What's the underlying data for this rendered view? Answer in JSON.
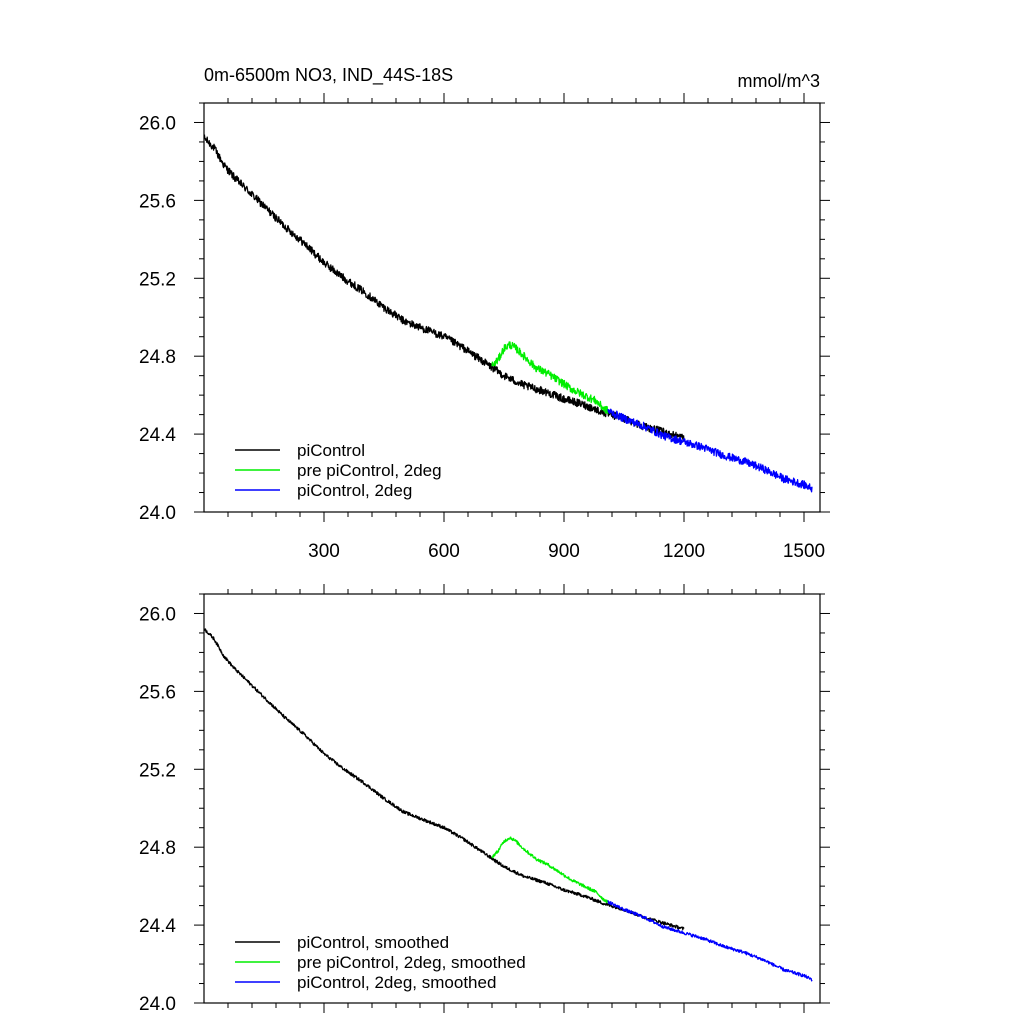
{
  "chart_data": [
    {
      "type": "line",
      "title": "0m-6500m NO3, IND_44S-18S",
      "units": "mmol/m^3",
      "xlim": [
        0,
        1540
      ],
      "ylim": [
        24.0,
        26.1
      ],
      "xticks": [
        300,
        600,
        900,
        1200,
        1500
      ],
      "xtick_labels": [
        "300",
        "600",
        "900",
        "1200",
        "1500"
      ],
      "yticks": [
        24.0,
        24.4,
        24.8,
        25.2,
        25.6,
        26.0
      ],
      "ytick_labels": [
        "24.0",
        "24.4",
        "24.8",
        "25.2",
        "25.6",
        "26.0"
      ],
      "legend_position": "bottom-left",
      "series": [
        {
          "name": "piControl",
          "color": "#000000",
          "noise": 0.02,
          "x": [
            1,
            25,
            50,
            75,
            100,
            125,
            150,
            175,
            200,
            250,
            300,
            350,
            400,
            450,
            500,
            550,
            600,
            650,
            700,
            750,
            800,
            850,
            900,
            950,
            1000,
            1050,
            1100,
            1150,
            1200
          ],
          "y": [
            25.92,
            25.87,
            25.78,
            25.72,
            25.67,
            25.62,
            25.57,
            25.52,
            25.47,
            25.38,
            25.28,
            25.2,
            25.13,
            25.05,
            24.98,
            24.94,
            24.9,
            24.84,
            24.77,
            24.7,
            24.65,
            24.62,
            24.58,
            24.55,
            24.51,
            24.48,
            24.44,
            24.41,
            24.38
          ]
        },
        {
          "name": "pre piControl, 2deg",
          "color": "#00ee00",
          "noise": 0.02,
          "x": [
            720,
            735,
            750,
            765,
            780,
            800,
            830,
            860,
            890,
            920,
            950,
            980,
            1000,
            1010
          ],
          "y": [
            24.75,
            24.78,
            24.84,
            24.86,
            24.84,
            24.8,
            24.74,
            24.71,
            24.67,
            24.63,
            24.6,
            24.57,
            24.53,
            24.52
          ]
        },
        {
          "name": "piControl, 2deg",
          "color": "#0000ff",
          "noise": 0.02,
          "x": [
            1010,
            1050,
            1100,
            1150,
            1200,
            1250,
            1300,
            1350,
            1400,
            1450,
            1500,
            1520
          ],
          "y": [
            24.52,
            24.48,
            24.44,
            24.39,
            24.36,
            24.33,
            24.29,
            24.26,
            24.22,
            24.17,
            24.14,
            24.12
          ]
        }
      ]
    },
    {
      "type": "line",
      "xlim": [
        0,
        1540
      ],
      "ylim": [
        24.0,
        26.1
      ],
      "xticks": [
        300,
        600,
        900,
        1200,
        1500
      ],
      "yticks": [
        24.0,
        24.4,
        24.8,
        25.2,
        25.6,
        26.0
      ],
      "ytick_labels": [
        "24.0",
        "24.4",
        "24.8",
        "25.2",
        "25.6",
        "26.0"
      ],
      "legend_position": "bottom-left",
      "series": [
        {
          "name": "piControl, smoothed",
          "color": "#000000",
          "noise": 0.008,
          "x": [
            1,
            25,
            50,
            75,
            100,
            125,
            150,
            175,
            200,
            250,
            300,
            350,
            400,
            450,
            500,
            550,
            600,
            650,
            700,
            750,
            800,
            850,
            900,
            950,
            1000,
            1050,
            1100,
            1150,
            1200
          ],
          "y": [
            25.92,
            25.87,
            25.78,
            25.72,
            25.67,
            25.62,
            25.57,
            25.52,
            25.47,
            25.38,
            25.28,
            25.2,
            25.13,
            25.05,
            24.98,
            24.94,
            24.9,
            24.84,
            24.77,
            24.7,
            24.65,
            24.62,
            24.58,
            24.55,
            24.51,
            24.48,
            24.44,
            24.41,
            24.38
          ]
        },
        {
          "name": "pre piControl, 2deg, smoothed",
          "color": "#00ee00",
          "noise": 0.008,
          "x": [
            720,
            735,
            750,
            765,
            780,
            800,
            830,
            860,
            890,
            920,
            950,
            980,
            1000,
            1010
          ],
          "y": [
            24.75,
            24.78,
            24.83,
            24.85,
            24.83,
            24.79,
            24.74,
            24.71,
            24.67,
            24.63,
            24.6,
            24.57,
            24.53,
            24.52
          ]
        },
        {
          "name": "piControl, 2deg, smoothed",
          "color": "#0000ff",
          "noise": 0.008,
          "x": [
            1010,
            1050,
            1100,
            1150,
            1200,
            1250,
            1300,
            1350,
            1400,
            1450,
            1500,
            1520
          ],
          "y": [
            24.52,
            24.48,
            24.44,
            24.39,
            24.36,
            24.33,
            24.29,
            24.26,
            24.22,
            24.17,
            24.14,
            24.12
          ]
        }
      ]
    }
  ]
}
